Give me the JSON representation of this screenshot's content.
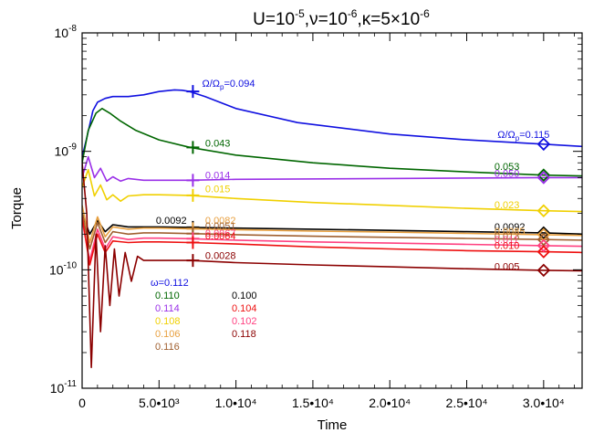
{
  "chart_data": {
    "type": "line",
    "title": {
      "base": "U=10",
      "e1": "-5",
      "mid": ",ν=10",
      "e2": "-6",
      "end": ",κ=5×10",
      "e3": "-6"
    },
    "xlabel": "Time",
    "ylabel": "Torque",
    "x_scale": "linear",
    "y_scale": "log",
    "xlim": [
      0,
      32500
    ],
    "ylim": [
      1e-11,
      1e-08
    ],
    "x_ticks": [
      {
        "value": 0,
        "label": "0"
      },
      {
        "value": 5000,
        "label": "5.0•10³"
      },
      {
        "value": 10000,
        "label": "1.0•10⁴"
      },
      {
        "value": 15000,
        "label": "1.5•10⁴"
      },
      {
        "value": 20000,
        "label": "2.0•10⁴"
      },
      {
        "value": 25000,
        "label": "2.5•10⁴"
      },
      {
        "value": 30000,
        "label": "3.0•10⁴"
      }
    ],
    "y_ticks": [
      {
        "value": 1e-08,
        "mantissa": "10",
        "exp": "-8"
      },
      {
        "value": 1e-09,
        "mantissa": "10",
        "exp": "-9"
      },
      {
        "value": 1e-10,
        "mantissa": "10",
        "exp": "-10"
      },
      {
        "value": 1e-11,
        "mantissa": "10",
        "exp": "-11"
      }
    ],
    "grid": false,
    "series": [
      {
        "color": "#1010e0",
        "x": [
          0,
          300,
          700,
          1000,
          1500,
          2000,
          3000,
          4000,
          5000,
          6000,
          6500,
          7000,
          8000,
          10000,
          14000,
          20000,
          25000,
          30000,
          32500
        ],
        "y": [
          9e-10,
          1.3e-09,
          2.2e-09,
          2.6e-09,
          2.8e-09,
          2.9e-09,
          2.9e-09,
          3e-09,
          3.2e-09,
          3.3e-09,
          3.28e-09,
          3.2e-09,
          2.9e-09,
          2.3e-09,
          1.75e-09,
          1.4e-09,
          1.25e-09,
          1.15e-09,
          1.1e-09
        ]
      },
      {
        "color": "#006600",
        "x": [
          0,
          400,
          900,
          1300,
          1800,
          2500,
          3500,
          5000,
          7000,
          10000,
          15000,
          20000,
          25000,
          30000,
          32500
        ],
        "y": [
          8e-10,
          1.5e-09,
          2.1e-09,
          2.3e-09,
          2.1e-09,
          1.8e-09,
          1.5e-09,
          1.25e-09,
          1.08e-09,
          9.3e-10,
          8e-10,
          7.2e-10,
          6.7e-10,
          6.3e-10,
          6.2e-10
        ]
      },
      {
        "color": "#9a30e8",
        "x": [
          0,
          400,
          800,
          1200,
          1600,
          2000,
          2500,
          3000,
          4000,
          5000,
          7000,
          10000,
          20000,
          30000,
          32500
        ],
        "y": [
          6e-10,
          9e-10,
          6e-10,
          7.2e-10,
          5.6e-10,
          6.1e-10,
          5.6e-10,
          5.9e-10,
          5.7e-10,
          5.7e-10,
          5.7e-10,
          5.8e-10,
          5.9e-10,
          6e-10,
          6e-10
        ]
      },
      {
        "color": "#f0d000",
        "x": [
          0,
          400,
          800,
          1200,
          1600,
          2000,
          2500,
          3000,
          4000,
          5000,
          7000,
          10000,
          15000,
          20000,
          25000,
          30000,
          32500
        ],
        "y": [
          5e-10,
          7e-10,
          4.2e-10,
          5.2e-10,
          3.9e-10,
          4.3e-10,
          3.8e-10,
          4.2e-10,
          4.3e-10,
          4.3e-10,
          4.25e-10,
          4e-10,
          3.7e-10,
          3.5e-10,
          3.3e-10,
          3.15e-10,
          3.1e-10
        ]
      },
      {
        "color": "#000000",
        "x": [
          0,
          500,
          1000,
          1500,
          2000,
          3000,
          4000,
          5000,
          7000,
          10000,
          15000,
          20000,
          25000,
          30000,
          32500
        ],
        "y": [
          3e-10,
          2e-10,
          2.6e-10,
          2.1e-10,
          2.4e-10,
          2.3e-10,
          2.3e-10,
          2.3e-10,
          2.28e-10,
          2.25e-10,
          2.2e-10,
          2.15e-10,
          2.1e-10,
          2.05e-10,
          2e-10
        ]
      },
      {
        "color": "#e8a040",
        "x": [
          0,
          500,
          1000,
          1500,
          2000,
          3000,
          4000,
          5000,
          7000,
          10000,
          15000,
          20000,
          25000,
          30000,
          32500
        ],
        "y": [
          3.5e-10,
          1.7e-10,
          2.8e-10,
          1.9e-10,
          2.3e-10,
          2.2e-10,
          2.25e-10,
          2.25e-10,
          2.22e-10,
          2.18e-10,
          2.12e-10,
          2.08e-10,
          2.03e-10,
          1.98e-10,
          1.95e-10
        ]
      },
      {
        "color": "#a06030",
        "x": [
          0,
          500,
          1000,
          1500,
          2000,
          3000,
          4000,
          5000,
          7000,
          10000,
          15000,
          20000,
          25000,
          30000,
          32500
        ],
        "y": [
          3e-10,
          1.5e-10,
          2.5e-10,
          1.7e-10,
          2.1e-10,
          2e-10,
          2.05e-10,
          2.05e-10,
          2.02e-10,
          1.98e-10,
          1.92e-10,
          1.88e-10,
          1.84e-10,
          1.8e-10,
          1.78e-10
        ]
      },
      {
        "color": "#ff4080",
        "x": [
          0,
          500,
          1000,
          1500,
          2000,
          3000,
          4000,
          5000,
          7000,
          10000,
          15000,
          20000,
          25000,
          30000,
          32500
        ],
        "y": [
          2.6e-10,
          1.2e-10,
          2.2e-10,
          1.5e-10,
          1.9e-10,
          1.8e-10,
          1.85e-10,
          1.85e-10,
          1.83e-10,
          1.78e-10,
          1.72e-10,
          1.68e-10,
          1.64e-10,
          1.6e-10,
          1.58e-10
        ]
      },
      {
        "color": "#ee1010",
        "x": [
          0,
          500,
          1000,
          1500,
          2000,
          3000,
          4000,
          5000,
          7000,
          10000,
          15000,
          20000,
          25000,
          30000,
          32500
        ],
        "y": [
          2.8e-10,
          1.1e-10,
          2e-10,
          1.4e-10,
          1.75e-10,
          1.7e-10,
          1.72e-10,
          1.72e-10,
          1.7e-10,
          1.65e-10,
          1.56e-10,
          1.5e-10,
          1.45e-10,
          1.42e-10,
          1.4e-10
        ]
      },
      {
        "color": "#8b0000",
        "x": [
          0,
          300,
          600,
          900,
          1200,
          1500,
          1800,
          2100,
          2400,
          2800,
          3200,
          3600,
          4000,
          5000,
          7000,
          10000,
          15000,
          20000,
          25000,
          30000,
          32500
        ],
        "y": [
          8e-10,
          3e-10,
          1.5e-11,
          2e-10,
          3e-11,
          1.6e-10,
          5e-11,
          1.5e-10,
          6e-11,
          1.4e-10,
          8e-11,
          1.3e-10,
          1.2e-10,
          1.2e-10,
          1.2e-10,
          1.15e-10,
          1.1e-10,
          1.06e-10,
          1.02e-10,
          9.9e-11,
          9.8e-11
        ]
      }
    ],
    "markers": [
      {
        "shape": "plus",
        "x": 7200,
        "y": 3.2e-09,
        "color": "#1010e0"
      },
      {
        "shape": "plus",
        "x": 7200,
        "y": 1.08e-09,
        "color": "#006600"
      },
      {
        "shape": "plus",
        "x": 7200,
        "y": 5.7e-10,
        "color": "#9a30e8"
      },
      {
        "shape": "plus",
        "x": 7200,
        "y": 4.25e-10,
        "color": "#f0d000"
      },
      {
        "shape": "plus",
        "x": 7200,
        "y": 2.28e-10,
        "color": "#000000"
      },
      {
        "shape": "plus",
        "x": 7200,
        "y": 2.22e-10,
        "color": "#e8a040"
      },
      {
        "shape": "plus",
        "x": 7200,
        "y": 2.02e-10,
        "color": "#a06030"
      },
      {
        "shape": "plus",
        "x": 7200,
        "y": 1.83e-10,
        "color": "#ff4080"
      },
      {
        "shape": "plus",
        "x": 7200,
        "y": 1.7e-10,
        "color": "#ee1010"
      },
      {
        "shape": "plus",
        "x": 7200,
        "y": 1.2e-10,
        "color": "#8b0000"
      },
      {
        "shape": "diamond",
        "x": 30000,
        "y": 1.15e-09,
        "color": "#1010e0"
      },
      {
        "shape": "diamond",
        "x": 30000,
        "y": 6.3e-10,
        "color": "#006600"
      },
      {
        "shape": "diamond",
        "x": 30000,
        "y": 6e-10,
        "color": "#9a30e8"
      },
      {
        "shape": "diamond",
        "x": 30000,
        "y": 3.15e-10,
        "color": "#f0d000"
      },
      {
        "shape": "diamond",
        "x": 30000,
        "y": 2.05e-10,
        "color": "#000000"
      },
      {
        "shape": "diamond",
        "x": 30000,
        "y": 1.98e-10,
        "color": "#e8a040"
      },
      {
        "shape": "diamond",
        "x": 30000,
        "y": 1.8e-10,
        "color": "#a06030"
      },
      {
        "shape": "diamond",
        "x": 30000,
        "y": 1.6e-10,
        "color": "#ff4080"
      },
      {
        "shape": "diamond",
        "x": 30000,
        "y": 1.42e-10,
        "color": "#ee1010"
      },
      {
        "shape": "diamond",
        "x": 30000,
        "y": 9.9e-11,
        "color": "#8b0000"
      }
    ],
    "annotations": [
      {
        "text": "Ω/Ω",
        "sub": "p",
        "tail": "=0.094",
        "x": 7800,
        "y": 3.5e-09,
        "color": "#1010e0"
      },
      {
        "text": "Ω/Ω",
        "sub": "p",
        "tail": "=0.115",
        "x": 27000,
        "y": 1.3e-09,
        "color": "#1010e0"
      },
      {
        "text": "0.043",
        "x": 8000,
        "y": 1.1e-09,
        "color": "#006600"
      },
      {
        "text": "0.014",
        "x": 8000,
        "y": 5.9e-10,
        "color": "#9a30e8"
      },
      {
        "text": "0.015",
        "x": 8000,
        "y": 4.5e-10,
        "color": "#f0d000"
      },
      {
        "text": "0.0092",
        "x": 4800,
        "y": 2.45e-10,
        "color": "#000000"
      },
      {
        "text": "0.0082",
        "x": 8000,
        "y": 2.45e-10,
        "color": "#e8a040"
      },
      {
        "text": "0.0051",
        "x": 8000,
        "y": 2.2e-10,
        "color": "#a06030"
      },
      {
        "text": "0.0067",
        "x": 8000,
        "y": 1.9e-10,
        "color": "#ff4080"
      },
      {
        "text": "0.0064",
        "x": 8000,
        "y": 1.8e-10,
        "color": "#ee1010"
      },
      {
        "text": "0.0028",
        "x": 8000,
        "y": 1.23e-10,
        "color": "#8b0000"
      },
      {
        "text": "0.053",
        "x": 26800,
        "y": 7e-10,
        "color": "#006600"
      },
      {
        "text": "0.050",
        "x": 26800,
        "y": 6.1e-10,
        "color": "#9a30e8"
      },
      {
        "text": "0.023",
        "x": 26800,
        "y": 3.3e-10,
        "color": "#f0d000"
      },
      {
        "text": "0.0092",
        "x": 26800,
        "y": 2.15e-10,
        "color": "#000000"
      },
      {
        "text": "0.0085",
        "x": 26800,
        "y": 1.98e-10,
        "color": "#e8a040"
      },
      {
        "text": "0.013",
        "x": 26800,
        "y": 1.8e-10,
        "color": "#a06030"
      },
      {
        "text": "0.011",
        "x": 26800,
        "y": 1.68e-10,
        "color": "#ff4080"
      },
      {
        "text": "0.010",
        "x": 26800,
        "y": 1.5e-10,
        "color": "#ee1010"
      },
      {
        "text": "0.005",
        "x": 26800,
        "y": 1e-10,
        "color": "#8b0000"
      }
    ],
    "omega_legend": {
      "left": [
        {
          "text": "ω=0.112",
          "color": "#1010e0"
        },
        {
          "text": "0.110",
          "color": "#006600"
        },
        {
          "text": "0.114",
          "color": "#9a30e8"
        },
        {
          "text": "0.108",
          "color": "#f0d000"
        },
        {
          "text": "0.106",
          "color": "#e8a040"
        },
        {
          "text": "0.116",
          "color": "#a06030"
        }
      ],
      "right": [
        {
          "text": "0.100",
          "color": "#000000"
        },
        {
          "text": "0.104",
          "color": "#ee1010"
        },
        {
          "text": "0.102",
          "color": "#ff4080"
        },
        {
          "text": "0.118",
          "color": "#8b0000"
        }
      ]
    }
  }
}
